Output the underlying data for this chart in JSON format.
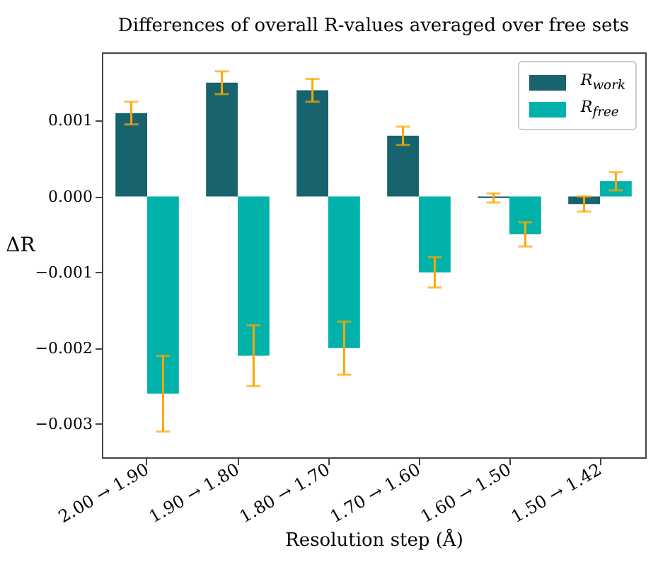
{
  "chart_data": {
    "type": "bar",
    "title": "Differences of overall R-values averaged over free sets",
    "xlabel": "Resolution step (Å)",
    "ylabel": "ΔR",
    "categories": [
      "2.00 → 1.90",
      "1.90 → 1.80",
      "1.80 → 1.70",
      "1.70 → 1.60",
      "1.60 → 1.50",
      "1.50 → 1.42"
    ],
    "series": [
      {
        "name": "R$_{work}$",
        "color": "#17646e",
        "values": [
          0.0011,
          0.0015,
          0.0014,
          0.0008,
          -2e-05,
          -0.0001
        ],
        "errors": [
          0.00015,
          0.00015,
          0.00015,
          0.00012,
          6e-05,
          0.0001
        ]
      },
      {
        "name": "R$_{free}$",
        "color": "#00b2a9",
        "values": [
          -0.0026,
          -0.0021,
          -0.002,
          -0.001,
          -0.0005,
          0.0002
        ],
        "errors": [
          0.0005,
          0.0004,
          0.00035,
          0.0002,
          0.00016,
          0.00012
        ]
      }
    ],
    "ylim": [
      -0.00344,
      0.0019
    ],
    "yticks": [
      {
        "value": -0.003,
        "label": "−0.003"
      },
      {
        "value": -0.002,
        "label": "−0.002"
      },
      {
        "value": -0.001,
        "label": "−0.001"
      },
      {
        "value": 0,
        "label": "0.000"
      },
      {
        "value": 0.001,
        "label": "0.001"
      }
    ],
    "grid": false,
    "legend": "top right"
  }
}
